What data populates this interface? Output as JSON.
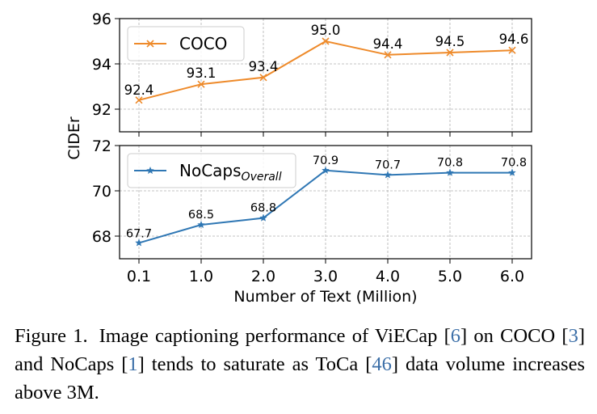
{
  "chart_data": {
    "type": "line",
    "ylabel": "CIDEr",
    "xlabel": "Number of Text (Million)",
    "categories": [
      "0.1",
      "1.0",
      "2.0",
      "3.0",
      "4.0",
      "5.0",
      "6.0"
    ],
    "panels": [
      {
        "legend": "COCO",
        "legend_sub": "",
        "color": "#ee8a2a",
        "marker": "x",
        "values": [
          92.4,
          93.1,
          93.4,
          95.0,
          94.4,
          94.5,
          94.6
        ],
        "value_labels": [
          "92.4",
          "93.1",
          "93.4",
          "95.0",
          "94.4",
          "94.5",
          "94.6"
        ],
        "ylim": [
          91.0,
          96.0
        ],
        "yticks": [
          92,
          94,
          96
        ],
        "legend_position": "top-left",
        "grid": true
      },
      {
        "legend": "NoCaps",
        "legend_sub": "Overall",
        "color": "#2f77b4",
        "marker": "star",
        "values": [
          67.7,
          68.5,
          68.8,
          70.9,
          70.7,
          70.8,
          70.8
        ],
        "value_labels": [
          "67.7",
          "68.5",
          "68.8",
          "70.9",
          "70.7",
          "70.8",
          "70.8"
        ],
        "ylim": [
          67.0,
          72.0
        ],
        "yticks": [
          68,
          70,
          72
        ],
        "legend_position": "top-left",
        "grid": true
      }
    ]
  },
  "caption": {
    "label": "Figure 1.",
    "text_1": "Image captioning performance of ViECap [",
    "ref_1": "6",
    "text_2": "] on COCO [",
    "ref_2": "3",
    "text_3": "] and NoCaps [",
    "ref_3": "1",
    "text_4": "] tends to saturate as ToCa [",
    "ref_4": "46",
    "text_5": "] data volume increases above 3M."
  }
}
